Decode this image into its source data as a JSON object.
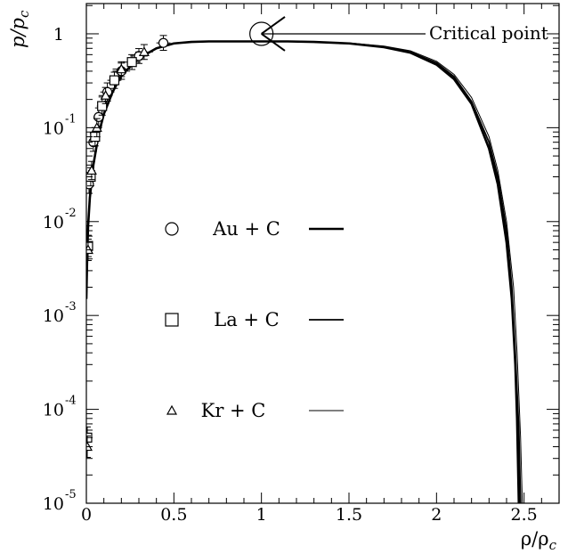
{
  "chart_data": {
    "type": "line",
    "xlabel": "ρ/ρ_c",
    "ylabel": "p/p_c",
    "xlim": [
      0,
      2.7
    ],
    "ylim": [
      1e-05,
      2.1
    ],
    "yscale": "log",
    "grid": false,
    "legend_position": "center-left",
    "x_ticks": [
      {
        "v": 0,
        "label": "0"
      },
      {
        "v": 0.5,
        "label": "0.5"
      },
      {
        "v": 1,
        "label": "1"
      },
      {
        "v": 1.5,
        "label": "1.5"
      },
      {
        "v": 2,
        "label": "2"
      },
      {
        "v": 2.5,
        "label": "2.5"
      }
    ],
    "y_ticks": [
      {
        "v": 1,
        "base": "1",
        "exp": ""
      },
      {
        "v": 0.1,
        "base": "10",
        "exp": "-1"
      },
      {
        "v": 0.01,
        "base": "10",
        "exp": "-2"
      },
      {
        "v": 0.001,
        "base": "10",
        "exp": "-3"
      },
      {
        "v": 0.0001,
        "base": "10",
        "exp": "-4"
      },
      {
        "v": 1e-05,
        "base": "10",
        "exp": "-5"
      }
    ],
    "legend": [
      {
        "label": "Au + C",
        "marker": "circle",
        "line_width": 2.6
      },
      {
        "label": "La + C",
        "marker": "square",
        "line_width": 1.8
      },
      {
        "label": "Kr + C",
        "marker": "triangle",
        "line_width": 1.0
      }
    ],
    "annotation": {
      "text": "Critical point",
      "x": 1.0,
      "y": 1.0
    },
    "coexistence_curves": [
      {
        "name": "Au + C",
        "x": [
          0.0,
          0.005,
          0.01,
          0.02,
          0.04,
          0.07,
          0.1,
          0.15,
          0.2,
          0.3,
          0.4,
          0.5,
          0.6,
          0.7,
          0.85,
          1.15,
          1.3,
          1.5,
          1.7,
          1.85,
          2.0,
          2.1,
          2.2,
          2.3,
          2.35,
          2.4,
          2.43,
          2.45,
          2.46,
          2.47
        ],
        "y": [
          0.0015,
          0.0045,
          0.009,
          0.018,
          0.04,
          0.085,
          0.14,
          0.24,
          0.36,
          0.55,
          0.7,
          0.79,
          0.82,
          0.83,
          0.83,
          0.83,
          0.82,
          0.79,
          0.72,
          0.63,
          0.47,
          0.33,
          0.18,
          0.06,
          0.025,
          0.006,
          0.0015,
          0.0003,
          8e-05,
          1e-05
        ]
      },
      {
        "name": "La + C",
        "x": [
          0.0,
          0.005,
          0.01,
          0.02,
          0.04,
          0.07,
          0.1,
          0.15,
          0.2,
          0.3,
          0.4,
          0.5,
          0.6,
          0.7,
          0.85,
          1.15,
          1.3,
          1.5,
          1.7,
          1.85,
          2.0,
          2.1,
          2.2,
          2.3,
          2.35,
          2.4,
          2.43,
          2.45,
          2.47,
          2.48
        ],
        "y": [
          0.0015,
          0.0045,
          0.009,
          0.018,
          0.04,
          0.085,
          0.14,
          0.24,
          0.36,
          0.55,
          0.7,
          0.79,
          0.82,
          0.83,
          0.83,
          0.83,
          0.82,
          0.79,
          0.73,
          0.64,
          0.49,
          0.35,
          0.19,
          0.07,
          0.03,
          0.008,
          0.002,
          0.0004,
          6e-05,
          1e-05
        ]
      },
      {
        "name": "Kr + C",
        "x": [
          0.0,
          0.005,
          0.01,
          0.02,
          0.04,
          0.07,
          0.1,
          0.15,
          0.2,
          0.3,
          0.4,
          0.5,
          0.6,
          0.7,
          0.85,
          1.15,
          1.3,
          1.5,
          1.7,
          1.85,
          2.0,
          2.1,
          2.2,
          2.3,
          2.35,
          2.4,
          2.44,
          2.46,
          2.48,
          2.49
        ],
        "y": [
          0.0015,
          0.0045,
          0.009,
          0.018,
          0.04,
          0.085,
          0.14,
          0.24,
          0.36,
          0.55,
          0.7,
          0.79,
          0.82,
          0.83,
          0.83,
          0.83,
          0.82,
          0.8,
          0.74,
          0.66,
          0.51,
          0.37,
          0.21,
          0.08,
          0.035,
          0.01,
          0.002,
          0.0004,
          5e-05,
          1e-05
        ]
      }
    ],
    "data_points": [
      {
        "series": "Au + C",
        "marker": "circle",
        "x": 0.015,
        "y": 0.025,
        "xerr": 0.02,
        "yerr_frac": 0.25
      },
      {
        "series": "Au + C",
        "marker": "circle",
        "x": 0.04,
        "y": 0.07,
        "xerr": 0.02,
        "yerr_frac": 0.25
      },
      {
        "series": "Au + C",
        "marker": "circle",
        "x": 0.07,
        "y": 0.13,
        "xerr": 0.03,
        "yerr_frac": 0.25
      },
      {
        "series": "Au + C",
        "marker": "circle",
        "x": 0.12,
        "y": 0.24,
        "xerr": 0.04,
        "yerr_frac": 0.25
      },
      {
        "series": "Au + C",
        "marker": "circle",
        "x": 0.2,
        "y": 0.4,
        "xerr": 0.05,
        "yerr_frac": 0.22
      },
      {
        "series": "Au + C",
        "marker": "circle",
        "x": 0.3,
        "y": 0.58,
        "xerr": 0.05,
        "yerr_frac": 0.2
      },
      {
        "series": "Au + C",
        "marker": "circle",
        "x": 0.44,
        "y": 0.8,
        "xerr": 0.04,
        "yerr_frac": 0.2
      },
      {
        "series": "La + C",
        "marker": "square",
        "x": 0.005,
        "y": 5e-05,
        "xerr": 0.01,
        "yerr_frac": 0.3
      },
      {
        "series": "La + C",
        "marker": "square",
        "x": 0.01,
        "y": 0.0055,
        "xerr": 0.015,
        "yerr_frac": 0.3
      },
      {
        "series": "La + C",
        "marker": "square",
        "x": 0.025,
        "y": 0.03,
        "xerr": 0.02,
        "yerr_frac": 0.25
      },
      {
        "series": "La + C",
        "marker": "square",
        "x": 0.05,
        "y": 0.08,
        "xerr": 0.02,
        "yerr_frac": 0.25
      },
      {
        "series": "La + C",
        "marker": "square",
        "x": 0.09,
        "y": 0.17,
        "xerr": 0.03,
        "yerr_frac": 0.25
      },
      {
        "series": "La + C",
        "marker": "square",
        "x": 0.16,
        "y": 0.32,
        "xerr": 0.04,
        "yerr_frac": 0.22
      },
      {
        "series": "La + C",
        "marker": "square",
        "x": 0.26,
        "y": 0.5,
        "xerr": 0.05,
        "yerr_frac": 0.2
      },
      {
        "series": "Kr + C",
        "marker": "triangle",
        "x": 0.005,
        "y": 4e-05,
        "xerr": 0.01,
        "yerr_frac": 0.3
      },
      {
        "series": "Kr + C",
        "marker": "triangle",
        "x": 0.01,
        "y": 0.005,
        "xerr": 0.015,
        "yerr_frac": 0.3
      },
      {
        "series": "Kr + C",
        "marker": "triangle",
        "x": 0.03,
        "y": 0.035,
        "xerr": 0.02,
        "yerr_frac": 0.25
      },
      {
        "series": "Kr + C",
        "marker": "triangle",
        "x": 0.06,
        "y": 0.1,
        "xerr": 0.03,
        "yerr_frac": 0.25
      },
      {
        "series": "Kr + C",
        "marker": "triangle",
        "x": 0.11,
        "y": 0.22,
        "xerr": 0.04,
        "yerr_frac": 0.22
      },
      {
        "series": "Kr + C",
        "marker": "triangle",
        "x": 0.2,
        "y": 0.42,
        "xerr": 0.05,
        "yerr_frac": 0.2
      },
      {
        "series": "Kr + C",
        "marker": "triangle",
        "x": 0.33,
        "y": 0.64,
        "xerr": 0.05,
        "yerr_frac": 0.2
      }
    ]
  }
}
